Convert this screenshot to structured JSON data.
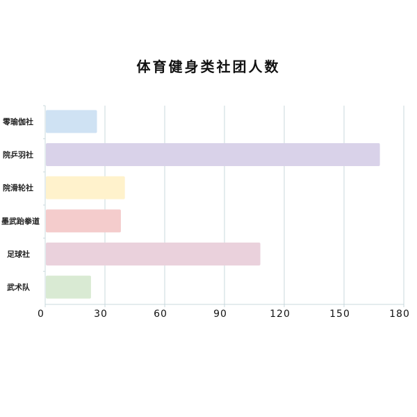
{
  "chart_data": {
    "type": "bar",
    "orientation": "horizontal",
    "title": "体育健身类社团人数",
    "categories": [
      "零瑜伽社",
      "院乒羽社",
      "院滑轮社",
      "墨武跆拳道",
      "足球社",
      "武术队"
    ],
    "values": [
      26,
      168,
      40,
      38,
      108,
      23
    ],
    "colors": [
      "#cfe2f3",
      "#d9d2e9",
      "#fff2cc",
      "#f4cccc",
      "#ead1dc",
      "#d9ead3"
    ],
    "xlim": [
      0,
      180
    ],
    "xticks": [
      "0",
      "30",
      "60",
      "90",
      "120",
      "150",
      "180"
    ],
    "grid": true,
    "grid_color": "#c9d9dc",
    "xlabel": "",
    "ylabel": ""
  }
}
